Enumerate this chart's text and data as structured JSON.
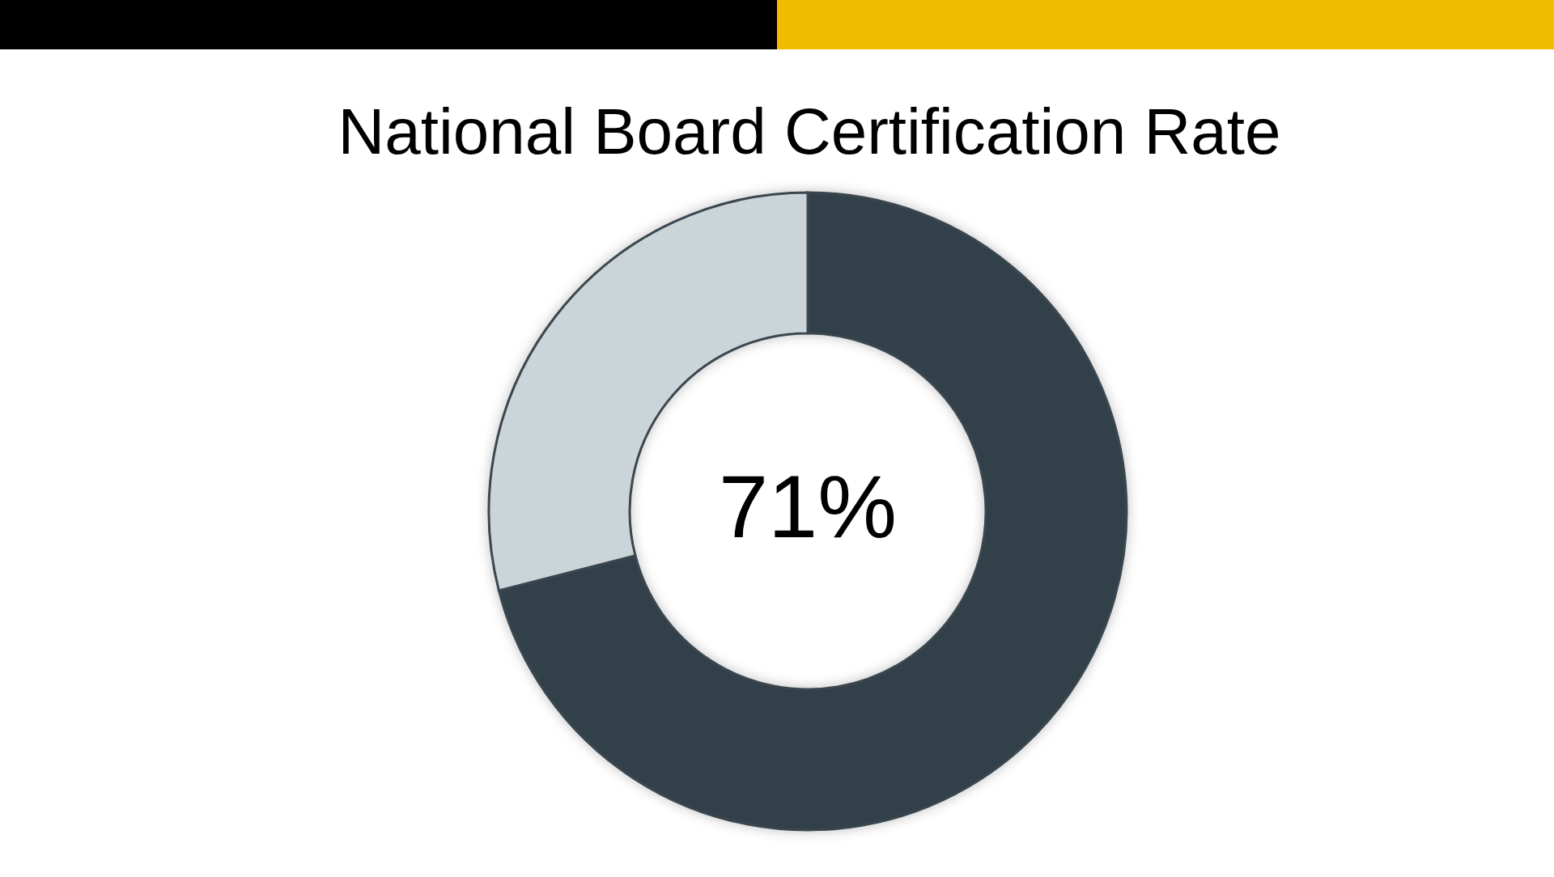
{
  "chart_data": {
    "type": "donut",
    "title": "National Board Certification Rate",
    "categories": [
      null,
      null
    ],
    "values": [
      71,
      29
    ],
    "colors": [
      "#333f4a",
      "#cbd5d9"
    ],
    "value_labels": [
      "71%",
      null
    ]
  }
}
